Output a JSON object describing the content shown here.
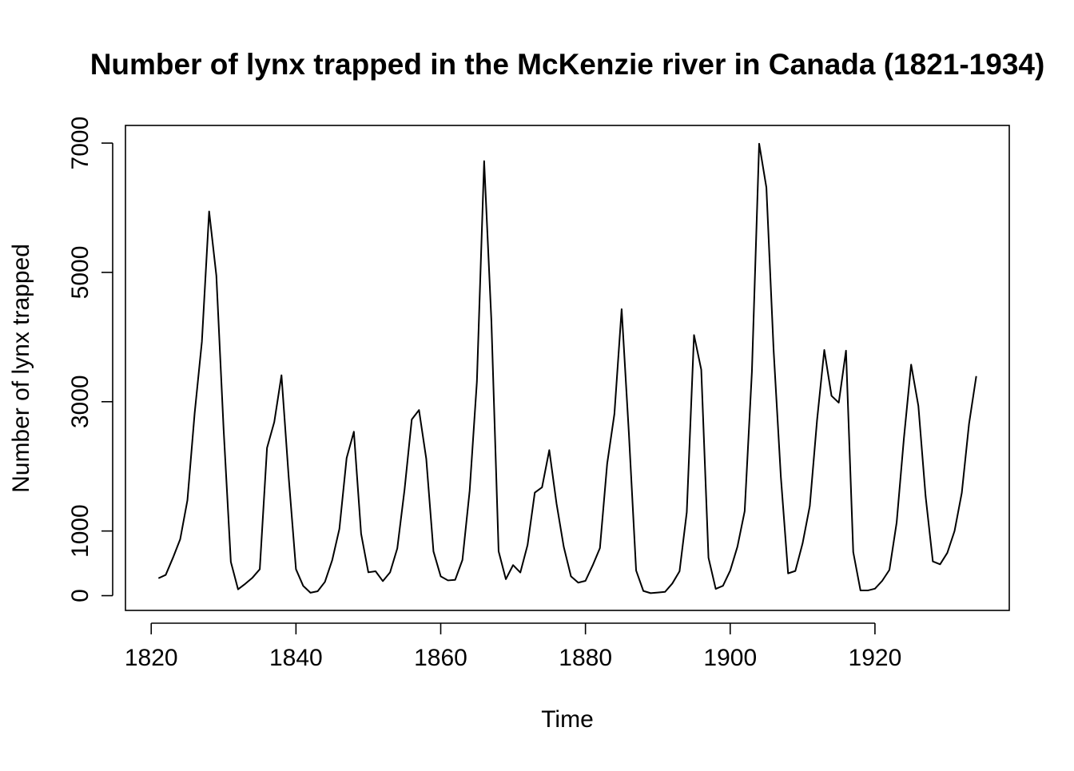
{
  "chart_data": {
    "type": "line",
    "title": "Number of lynx trapped in the McKenzie river in Canada (1821-1934)",
    "xlabel": "Time",
    "ylabel": "Number of lynx trapped",
    "xlim": [
      1816.44,
      1938.56
    ],
    "ylim": [
      -228.2,
      7273.2
    ],
    "xticks": [
      1820,
      1840,
      1860,
      1880,
      1900,
      1920
    ],
    "yticks": [
      0,
      1000,
      3000,
      5000,
      7000
    ],
    "grid": false,
    "legend": "none",
    "line_color": "#000000",
    "series": [
      {
        "x": [
          1821,
          1822,
          1823,
          1824,
          1825,
          1826,
          1827,
          1828,
          1829,
          1830,
          1831,
          1832,
          1833,
          1834,
          1835,
          1836,
          1837,
          1838,
          1839,
          1840,
          1841,
          1842,
          1843,
          1844,
          1845,
          1846,
          1847,
          1848,
          1849,
          1850,
          1851,
          1852,
          1853,
          1854,
          1855,
          1856,
          1857,
          1858,
          1859,
          1860,
          1861,
          1862,
          1863,
          1864,
          1865,
          1866,
          1867,
          1868,
          1869,
          1870,
          1871,
          1872,
          1873,
          1874,
          1875,
          1876,
          1877,
          1878,
          1879,
          1880,
          1881,
          1882,
          1883,
          1884,
          1885,
          1886,
          1887,
          1888,
          1889,
          1890,
          1891,
          1892,
          1893,
          1894,
          1895,
          1896,
          1897,
          1898,
          1899,
          1900,
          1901,
          1902,
          1903,
          1904,
          1905,
          1906,
          1907,
          1908,
          1909,
          1910,
          1911,
          1912,
          1913,
          1914,
          1915,
          1916,
          1917,
          1918,
          1919,
          1920,
          1921,
          1922,
          1923,
          1924,
          1925,
          1926,
          1927,
          1928,
          1929,
          1930,
          1931,
          1932,
          1933,
          1934
        ],
        "values": [
          269,
          321,
          585,
          871,
          1475,
          2821,
          3928,
          5943,
          4950,
          2577,
          523,
          98,
          184,
          279,
          409,
          2285,
          2685,
          3409,
          1824,
          409,
          151,
          45,
          68,
          213,
          546,
          1033,
          2129,
          2536,
          957,
          361,
          377,
          225,
          360,
          731,
          1638,
          2725,
          2871,
          2119,
          684,
          299,
          236,
          245,
          552,
          1623,
          3311,
          6721,
          4254,
          687,
          255,
          473,
          358,
          784,
          1594,
          1676,
          2251,
          1426,
          756,
          299,
          201,
          229,
          469,
          736,
          2042,
          2811,
          4431,
          2511,
          389,
          73,
          39,
          49,
          59,
          188,
          377,
          1292,
          4031,
          3495,
          587,
          105,
          153,
          387,
          758,
          1307,
          3465,
          6991,
          6313,
          3794,
          1836,
          345,
          382,
          808,
          1388,
          2713,
          3800,
          3091,
          2985,
          3790,
          674,
          81,
          80,
          108,
          229,
          399,
          1132,
          2432,
          3574,
          2935,
          1537,
          529,
          485,
          662,
          1000,
          1590,
          2657,
          3396
        ]
      }
    ]
  }
}
